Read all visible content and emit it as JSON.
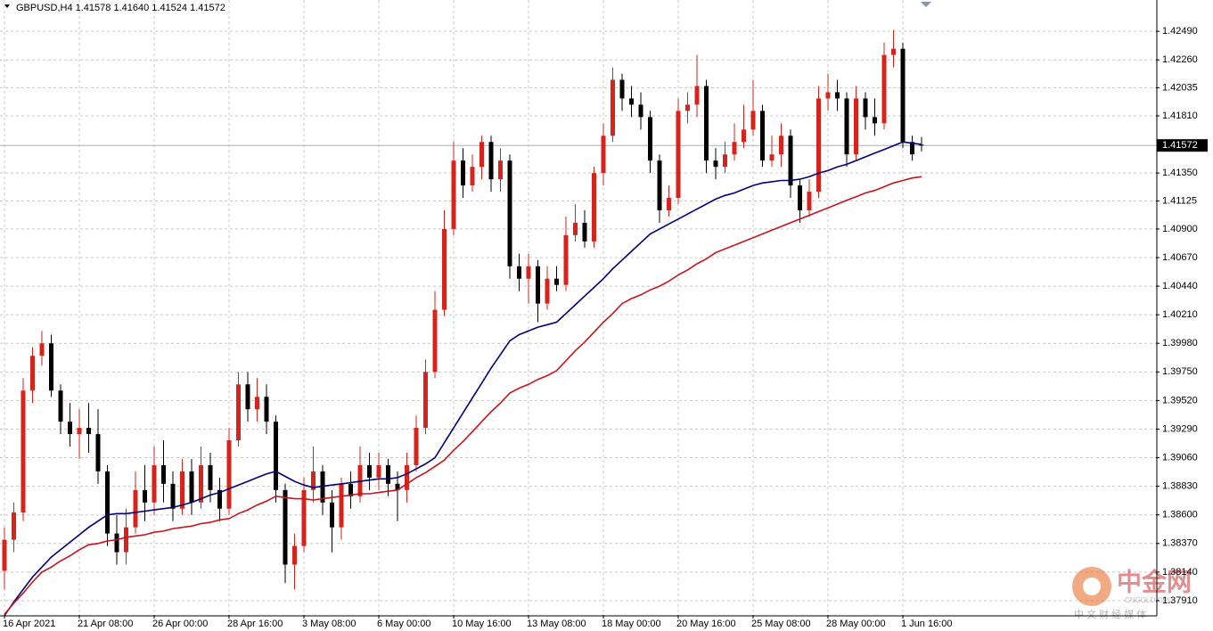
{
  "chart_data": {
    "type": "candlestick",
    "title": "GBPUSD,H4  1.41578 1.41640 1.41524 1.41572",
    "categories": [
      "16 Apr 2021",
      null,
      null,
      null,
      null,
      null,
      null,
      null,
      "21 Apr 08:00",
      null,
      null,
      null,
      null,
      null,
      null,
      null,
      "26 Apr 00:00",
      null,
      null,
      null,
      null,
      null,
      null,
      null,
      "28 Apr 16:00",
      null,
      null,
      null,
      null,
      null,
      null,
      null,
      "3 May 08:00",
      null,
      null,
      null,
      null,
      null,
      null,
      null,
      "6 May 00:00",
      null,
      null,
      null,
      null,
      null,
      null,
      null,
      "10 May 16:00",
      null,
      null,
      null,
      null,
      null,
      null,
      null,
      "13 May 08:00",
      null,
      null,
      null,
      null,
      null,
      null,
      null,
      "18 May 00:00",
      null,
      null,
      null,
      null,
      null,
      null,
      null,
      "20 May 16:00",
      null,
      null,
      null,
      null,
      null,
      null,
      null,
      "25 May 08:00",
      null,
      null,
      null,
      null,
      null,
      null,
      null,
      "28 May 00:00",
      null,
      null,
      null,
      null,
      null,
      null,
      null,
      "1 Jun 16:00",
      null,
      null
    ],
    "ohlc": {
      "open": [
        1.3815,
        1.384,
        1.3862,
        1.396,
        1.3988,
        1.3998,
        1.396,
        1.3935,
        1.3925,
        1.393,
        1.3925,
        1.3895,
        1.3845,
        1.383,
        1.385,
        1.388,
        1.387,
        1.39,
        1.3885,
        1.3865,
        1.3895,
        1.387,
        1.39,
        1.388,
        1.3865,
        1.392,
        1.3965,
        1.3945,
        1.3955,
        1.3935,
        1.388,
        1.382,
        1.3835,
        1.388,
        1.3895,
        1.387,
        1.385,
        1.3885,
        1.3875,
        1.39,
        1.389,
        1.39,
        1.3885,
        1.388,
        1.39,
        1.393,
        1.3975,
        1.4025,
        1.409,
        1.4145,
        1.4125,
        1.414,
        1.416,
        1.413,
        1.4145,
        1.406,
        1.405,
        1.406,
        1.403,
        1.405,
        1.4045,
        1.4085,
        1.4095,
        1.408,
        1.4135,
        1.4165,
        1.421,
        1.4195,
        1.419,
        1.418,
        1.4145,
        1.4105,
        1.4115,
        1.4185,
        1.419,
        1.4205,
        1.4145,
        1.414,
        1.415,
        1.416,
        1.417,
        1.4185,
        1.4145,
        1.415,
        1.4165,
        1.4125,
        1.4105,
        1.412,
        1.4195,
        1.42,
        1.4195,
        1.415,
        1.4195,
        1.418,
        1.4175,
        1.423,
        1.4235,
        1.416,
        1.41578
      ],
      "high": [
        1.385,
        1.387,
        1.397,
        1.3995,
        1.4008,
        1.4005,
        1.3965,
        1.395,
        1.3945,
        1.395,
        1.3945,
        1.39,
        1.386,
        1.3865,
        1.3895,
        1.39,
        1.3915,
        1.392,
        1.3895,
        1.3905,
        1.3905,
        1.3915,
        1.391,
        1.389,
        1.393,
        1.3975,
        1.3975,
        1.397,
        1.3965,
        1.394,
        1.3885,
        1.3845,
        1.389,
        1.3915,
        1.39,
        1.388,
        1.389,
        1.3895,
        1.3915,
        1.391,
        1.391,
        1.3905,
        1.3895,
        1.391,
        1.394,
        1.3985,
        1.404,
        1.4105,
        1.416,
        1.4155,
        1.415,
        1.4165,
        1.4165,
        1.4155,
        1.415,
        1.407,
        1.407,
        1.4065,
        1.406,
        1.406,
        1.41,
        1.411,
        1.4105,
        1.414,
        1.4175,
        1.422,
        1.4215,
        1.4205,
        1.42,
        1.4185,
        1.415,
        1.4125,
        1.4195,
        1.42,
        1.423,
        1.421,
        1.4155,
        1.416,
        1.4175,
        1.419,
        1.421,
        1.419,
        1.4165,
        1.4175,
        1.417,
        1.413,
        1.413,
        1.4205,
        1.4215,
        1.421,
        1.42,
        1.4205,
        1.42,
        1.4195,
        1.424,
        1.425,
        1.424,
        1.4165,
        1.4164
      ],
      "low": [
        1.38,
        1.383,
        1.3855,
        1.395,
        1.398,
        1.3955,
        1.3925,
        1.3915,
        1.3905,
        1.391,
        1.3885,
        1.3835,
        1.382,
        1.382,
        1.3845,
        1.3855,
        1.386,
        1.387,
        1.3855,
        1.386,
        1.386,
        1.3865,
        1.387,
        1.3855,
        1.386,
        1.3915,
        1.3935,
        1.3935,
        1.3925,
        1.387,
        1.3805,
        1.38,
        1.383,
        1.387,
        1.386,
        1.383,
        1.384,
        1.3865,
        1.387,
        1.388,
        1.388,
        1.3875,
        1.3855,
        1.387,
        1.3895,
        1.3925,
        1.397,
        1.402,
        1.4085,
        1.4115,
        1.412,
        1.413,
        1.412,
        1.412,
        1.405,
        1.404,
        1.403,
        1.4015,
        1.4025,
        1.404,
        1.404,
        1.408,
        1.4075,
        1.4075,
        1.4125,
        1.416,
        1.4185,
        1.418,
        1.417,
        1.4135,
        1.4095,
        1.41,
        1.411,
        1.4175,
        1.418,
        1.4135,
        1.413,
        1.4135,
        1.4145,
        1.4155,
        1.4165,
        1.414,
        1.414,
        1.414,
        1.4115,
        1.4095,
        1.41,
        1.4115,
        1.4185,
        1.4185,
        1.414,
        1.4145,
        1.417,
        1.4165,
        1.417,
        1.422,
        1.4155,
        1.4145,
        1.41524
      ],
      "close": [
        1.384,
        1.3862,
        1.396,
        1.3988,
        1.3998,
        1.396,
        1.3935,
        1.3925,
        1.393,
        1.3925,
        1.3895,
        1.3845,
        1.383,
        1.385,
        1.388,
        1.387,
        1.39,
        1.3885,
        1.3865,
        1.3895,
        1.387,
        1.39,
        1.388,
        1.3865,
        1.392,
        1.3965,
        1.3945,
        1.3955,
        1.3935,
        1.388,
        1.382,
        1.3835,
        1.388,
        1.3895,
        1.387,
        1.385,
        1.3885,
        1.3875,
        1.39,
        1.389,
        1.39,
        1.3885,
        1.388,
        1.39,
        1.393,
        1.3975,
        1.4025,
        1.409,
        1.4145,
        1.4125,
        1.414,
        1.416,
        1.413,
        1.4145,
        1.406,
        1.405,
        1.406,
        1.403,
        1.405,
        1.4045,
        1.4085,
        1.4095,
        1.408,
        1.4135,
        1.4165,
        1.421,
        1.4195,
        1.419,
        1.418,
        1.4145,
        1.4105,
        1.4115,
        1.4185,
        1.419,
        1.4205,
        1.4145,
        1.414,
        1.415,
        1.416,
        1.417,
        1.4185,
        1.4145,
        1.415,
        1.4165,
        1.4125,
        1.4105,
        1.412,
        1.4195,
        1.42,
        1.4195,
        1.415,
        1.4195,
        1.418,
        1.4175,
        1.423,
        1.4235,
        1.416,
        1.415,
        1.41572
      ],
      "up_color": "#d8231c",
      "down_color": "#000000"
    },
    "moving_averages": [
      {
        "color": "#00007a",
        "values": [
          1.3779,
          1.379,
          1.38,
          1.381,
          1.3818,
          1.3826,
          1.3832,
          1.3838,
          1.3844,
          1.385,
          1.3855,
          1.386,
          1.3861,
          1.3861,
          1.3862,
          1.3863,
          1.3864,
          1.3865,
          1.3866,
          1.3868,
          1.387,
          1.3873,
          1.3876,
          1.3878,
          1.3881,
          1.3884,
          1.3887,
          1.389,
          1.3893,
          1.3895,
          1.3891,
          1.3887,
          1.3884,
          1.3882,
          1.3883,
          1.3884,
          1.3885,
          1.3886,
          1.3887,
          1.3888,
          1.3889,
          1.3889,
          1.389,
          1.3893,
          1.3897,
          1.3901,
          1.3906,
          1.3918,
          1.393,
          1.3942,
          1.3954,
          1.3966,
          1.3978,
          1.3989,
          1.4,
          1.4005,
          1.4008,
          1.4011,
          1.4013,
          1.4015,
          1.4022,
          1.4029,
          1.4036,
          1.4043,
          1.405,
          1.4058,
          1.4065,
          1.4072,
          1.4079,
          1.4086,
          1.409,
          1.4094,
          1.4098,
          1.4102,
          1.4106,
          1.411,
          1.4114,
          1.4117,
          1.4119,
          1.4122,
          1.4125,
          1.4127,
          1.4128,
          1.4129,
          1.4129,
          1.413,
          1.4132,
          1.4135,
          1.4137,
          1.414,
          1.4142,
          1.4145,
          1.4148,
          1.4151,
          1.4154,
          1.4157,
          1.416,
          1.4159,
          1.4158
        ]
      },
      {
        "color": "#c8141c",
        "values": [
          1.378,
          1.3789,
          1.3797,
          1.3806,
          1.3814,
          1.3818,
          1.3823,
          1.3827,
          1.3832,
          1.3836,
          1.3837,
          1.3839,
          1.384,
          1.3842,
          1.3843,
          1.3844,
          1.3846,
          1.3847,
          1.3849,
          1.385,
          1.3851,
          1.3853,
          1.3854,
          1.3856,
          1.3857,
          1.3861,
          1.3864,
          1.3868,
          1.3871,
          1.3875,
          1.3874,
          1.3873,
          1.3873,
          1.3872,
          1.3873,
          1.3874,
          1.3875,
          1.3876,
          1.3877,
          1.3877,
          1.3878,
          1.3879,
          1.388,
          1.3885,
          1.389,
          1.3894,
          1.3899,
          1.3904,
          1.3912,
          1.3919,
          1.3927,
          1.3935,
          1.3943,
          1.395,
          1.3958,
          1.3962,
          1.3965,
          1.3969,
          1.3972,
          1.3976,
          1.3984,
          1.3992,
          1.3999,
          1.4007,
          1.4015,
          1.4022,
          1.403,
          1.4034,
          1.4037,
          1.4041,
          1.4044,
          1.4048,
          1.4053,
          1.4057,
          1.4062,
          1.4066,
          1.4071,
          1.4074,
          1.4077,
          1.408,
          1.4083,
          1.4086,
          1.4089,
          1.4092,
          1.4095,
          1.4098,
          1.4101,
          1.4104,
          1.4107,
          1.411,
          1.4113,
          1.4116,
          1.4119,
          1.4121,
          1.4124,
          1.4127,
          1.4129,
          1.4131,
          1.4132
        ]
      }
    ],
    "ylim": [
      1.37795,
      1.42742
    ],
    "yticks": [
      {
        "value": 1.4249,
        "label": "1.42490"
      },
      {
        "value": 1.4226,
        "label": "1.42260"
      },
      {
        "value": 1.42035,
        "label": "1.42035"
      },
      {
        "value": 1.4181,
        "label": "1.41810"
      },
      {
        "value": 1.4135,
        "label": "1.41350"
      },
      {
        "value": 1.41125,
        "label": "1.41125"
      },
      {
        "value": 1.409,
        "label": "1.40900"
      },
      {
        "value": 1.4067,
        "label": "1.40670"
      },
      {
        "value": 1.4044,
        "label": "1.40440"
      },
      {
        "value": 1.4021,
        "label": "1.40210"
      },
      {
        "value": 1.3998,
        "label": "1.39980"
      },
      {
        "value": 1.3975,
        "label": "1.39750"
      },
      {
        "value": 1.3952,
        "label": "1.39520"
      },
      {
        "value": 1.3929,
        "label": "1.39290"
      },
      {
        "value": 1.3906,
        "label": "1.39060"
      },
      {
        "value": 1.3883,
        "label": "1.38830"
      },
      {
        "value": 1.386,
        "label": "1.38600"
      },
      {
        "value": 1.3837,
        "label": "1.38370"
      },
      {
        "value": 1.3814,
        "label": "1.38140"
      },
      {
        "value": 1.3791,
        "label": "1.37910"
      }
    ],
    "current_price": 1.41572,
    "grid": true
  },
  "watermark": {
    "name": "中金网",
    "domain": "CNGOLD.ORG",
    "tagline": "中 文 财 经 媒 体"
  }
}
